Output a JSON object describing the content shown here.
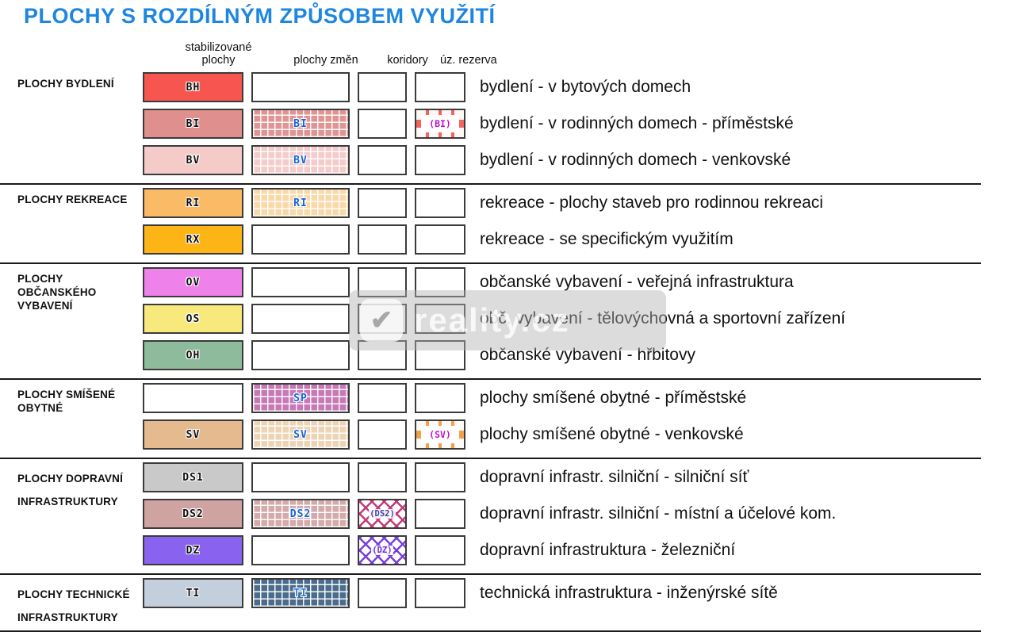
{
  "title": "PLOCHY S ROZDÍLNÝM ZPŮSOBEM VYUŽITÍ",
  "columns": {
    "stabilized": "stabilizované plochy",
    "changes": "plochy změn",
    "corridors": "koridory",
    "reserve": "úz. rezerva"
  },
  "watermark": {
    "text": "reality.cz",
    "logo_icon": "check-logo-icon"
  },
  "groups": [
    {
      "line1": "PLOCHY BYDLENÍ",
      "line2": ""
    },
    {
      "line1": "PLOCHY REKREACE",
      "line2": ""
    },
    {
      "line1": "PLOCHY OBČANSKÉHO",
      "line2": "VYBAVENÍ"
    },
    {
      "line1": "PLOCHY SMÍŠENÉ",
      "line2": "OBYTNÉ"
    },
    {
      "line1": "PLOCHY DOPRAVNÍ",
      "line2": "INFRASTRUKTURY"
    },
    {
      "line1": "PLOCHY TECHNICKÉ",
      "line2": "INFRASTRUKTURY"
    }
  ],
  "rows": [
    {
      "code": "BH",
      "stab": {
        "type": "solid",
        "color": "#f6564f",
        "label": "BH",
        "label_color": "#111111"
      },
      "zmena": {
        "type": "empty"
      },
      "koridor": {
        "type": "empty"
      },
      "rezerva": {
        "type": "empty"
      },
      "desc": "bydlení - v bytových domech"
    },
    {
      "code": "BI",
      "stab": {
        "type": "solid",
        "color": "#e08f8f",
        "label": "BI",
        "label_color": "#111111"
      },
      "zmena": {
        "type": "grid",
        "color": "#e09494",
        "label": "BI",
        "label_color": "#1565d8"
      },
      "koridor": {
        "type": "empty"
      },
      "rezerva": {
        "type": "dashed",
        "color": "#ef655e",
        "label": "(BI)",
        "label_color": "#b911c6"
      },
      "desc": "bydlení - v rodinných domech - příměstské"
    },
    {
      "code": "BV",
      "stab": {
        "type": "solid",
        "color": "#f5cbca",
        "label": "BV",
        "label_color": "#111111"
      },
      "zmena": {
        "type": "grid",
        "color": "#f3cccb",
        "label": "BV",
        "label_color": "#1565d8"
      },
      "koridor": {
        "type": "empty"
      },
      "rezerva": {
        "type": "empty"
      },
      "desc": "bydlení - v rodinných domech - venkovské"
    },
    {
      "code": "RI",
      "stab": {
        "type": "solid",
        "color": "#f9bb66",
        "label": "RI",
        "label_color": "#111111"
      },
      "zmena": {
        "type": "grid",
        "color": "#fad9a8",
        "label": "RI",
        "label_color": "#1565d8"
      },
      "koridor": {
        "type": "empty"
      },
      "rezerva": {
        "type": "empty"
      },
      "desc": "rekreace - plochy staveb pro rodinnou rekreaci"
    },
    {
      "code": "RX",
      "stab": {
        "type": "solid",
        "color": "#fcb515",
        "label": "RX",
        "label_color": "#111111"
      },
      "zmena": {
        "type": "empty"
      },
      "koridor": {
        "type": "empty"
      },
      "rezerva": {
        "type": "empty"
      },
      "desc": "rekreace - se specifickým využitím"
    },
    {
      "code": "OV",
      "stab": {
        "type": "solid",
        "color": "#ee82ea",
        "label": "OV",
        "label_color": "#111111"
      },
      "zmena": {
        "type": "empty"
      },
      "koridor": {
        "type": "empty"
      },
      "rezerva": {
        "type": "empty"
      },
      "desc": "občanské vybavení - veřejná infrastruktura"
    },
    {
      "code": "OS",
      "stab": {
        "type": "solid",
        "color": "#f8e97c",
        "label": "OS",
        "label_color": "#111111"
      },
      "zmena": {
        "type": "empty"
      },
      "koridor": {
        "type": "empty"
      },
      "rezerva": {
        "type": "empty"
      },
      "desc": "obč. vybavení - tělovýchovná a sportovní zařízení"
    },
    {
      "code": "OH",
      "stab": {
        "type": "solid",
        "color": "#8dbb9b",
        "label": "OH",
        "label_color": "#111111"
      },
      "zmena": {
        "type": "empty"
      },
      "koridor": {
        "type": "empty"
      },
      "rezerva": {
        "type": "empty"
      },
      "desc": "občanské vybavení - hřbitovy"
    },
    {
      "code": "SP",
      "stab": {
        "type": "empty"
      },
      "zmena": {
        "type": "grid",
        "color": "#c679b6",
        "label": "SP",
        "label_color": "#1565d8"
      },
      "koridor": {
        "type": "empty"
      },
      "rezerva": {
        "type": "empty"
      },
      "desc": "plochy smíšené obytné - příměstské"
    },
    {
      "code": "SV",
      "stab": {
        "type": "solid",
        "color": "#e4ba8e",
        "label": "SV",
        "label_color": "#111111"
      },
      "zmena": {
        "type": "grid",
        "color": "#edd4b4",
        "label": "SV",
        "label_color": "#1565d8"
      },
      "koridor": {
        "type": "empty"
      },
      "rezerva": {
        "type": "dashed",
        "color": "#f2a04e",
        "label": "(SV)",
        "label_color": "#c411c4"
      },
      "desc": "plochy smíšené obytné - venkovské"
    },
    {
      "code": "DS1",
      "stab": {
        "type": "solid",
        "color": "#c9c9c9",
        "label": "DS1",
        "label_color": "#111111"
      },
      "zmena": {
        "type": "empty"
      },
      "koridor": {
        "type": "empty"
      },
      "rezerva": {
        "type": "empty"
      },
      "desc": "dopravní infrastr. silniční - silniční síť"
    },
    {
      "code": "DS2",
      "stab": {
        "type": "solid",
        "color": "#d0a3a3",
        "label": "DS2",
        "label_color": "#111111"
      },
      "zmena": {
        "type": "grid",
        "color": "#d5aaaa",
        "label": "DS2",
        "label_color": "#1565d8"
      },
      "koridor": {
        "type": "hatch",
        "color": "#c23a78",
        "label": "(DS2)",
        "label_color": "#3c3fa8"
      },
      "rezerva": {
        "type": "empty"
      },
      "desc": "dopravní infrastr. silniční - místní a účelové kom."
    },
    {
      "code": "DZ",
      "stab": {
        "type": "solid",
        "color": "#8a62f0",
        "label": "DZ",
        "label_color": "#111111"
      },
      "zmena": {
        "type": "empty"
      },
      "koridor": {
        "type": "hatch",
        "color": "#7a3fd9",
        "label": "(DZ)",
        "label_color": "#6a2fd6"
      },
      "rezerva": {
        "type": "empty"
      },
      "desc": "dopravní infrastruktura - železniční"
    },
    {
      "code": "TI",
      "stab": {
        "type": "solid",
        "color": "#c3cfdc",
        "label": "TI",
        "label_color": "#111111"
      },
      "zmena": {
        "type": "grid",
        "color": "#4b6c8c",
        "label": "TI",
        "label_color": "#2f7fd8"
      },
      "koridor": {
        "type": "empty"
      },
      "rezerva": {
        "type": "empty"
      },
      "desc": "technická infrastruktura - inženýrské sítě"
    }
  ]
}
